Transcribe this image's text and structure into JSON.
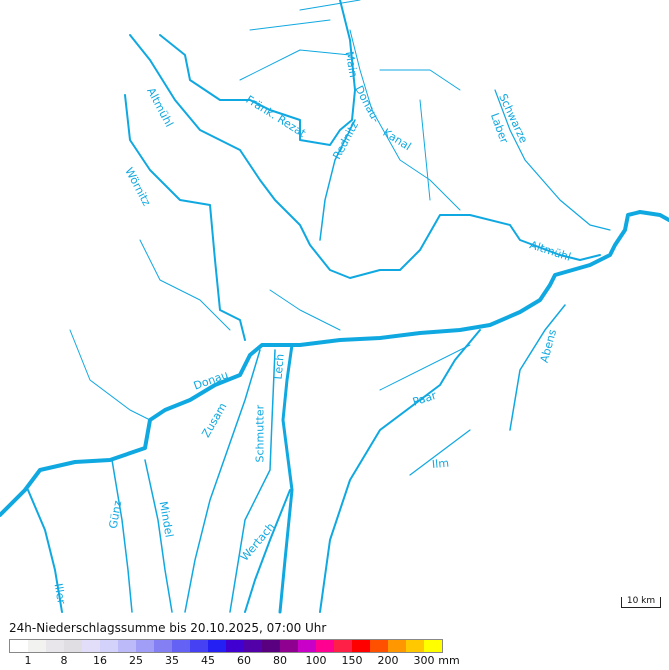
{
  "map": {
    "river_color": "#10a8e0",
    "rivers": [
      {
        "name": "Donau"
      },
      {
        "name": "Lech"
      },
      {
        "name": "Altmühl"
      },
      {
        "name": "Fränk. Rezat"
      },
      {
        "name": "Wörnitz"
      },
      {
        "name": "Zusam"
      },
      {
        "name": "Schmutter"
      },
      {
        "name": "Wertach"
      },
      {
        "name": "Mindel"
      },
      {
        "name": "Günz"
      },
      {
        "name": "Iller"
      },
      {
        "name": "Paar"
      },
      {
        "name": "Ilm"
      },
      {
        "name": "Abens"
      },
      {
        "name": "Schwarze Laber"
      },
      {
        "name": "Main-Donau-Kanal"
      },
      {
        "name": "Rednitz"
      }
    ],
    "labels": {
      "altmuehl_north": "Altmühl",
      "rezat": "Fränk. Rezat",
      "main": "Main-",
      "donau_kanal": "Donau-",
      "kanal": "Kanal",
      "rednitz": "Rednitz",
      "schwarze": "Schwarze",
      "laber": "Laber",
      "woernitz": "Wörnitz",
      "altmuehl_south": "Altmühl",
      "donau": "Donau",
      "lech": "Lech",
      "zusam": "Zusam",
      "schmutter": "Schmutter",
      "paar": "Paar",
      "abens": "Abens",
      "ilm": "Ilm",
      "guenz": "Günz",
      "mindel": "Mindel",
      "wertach": "Wertach",
      "iller": "Iller"
    },
    "scale_bar": "10 km"
  },
  "legend": {
    "title": "24h-Niederschlagssumme bis 20.10.2025, 07:00 Uhr",
    "unit": "mm",
    "colors": [
      "#ffffff",
      "#f2f3f0",
      "#e8e6eb",
      "#e0dee3",
      "#e2defa",
      "#d2d2fa",
      "#bcbaf8",
      "#a09ef6",
      "#8480f4",
      "#6462f4",
      "#4642f4",
      "#2420f4",
      "#4000d0",
      "#5200a8",
      "#580080",
      "#900090",
      "#c800c8",
      "#ff0090",
      "#ff2048",
      "#ff0000",
      "#ff5000",
      "#ff9800",
      "#ffc800",
      "#ffff00"
    ],
    "ticks": [
      "1",
      "8",
      "16",
      "25",
      "35",
      "45",
      "60",
      "80",
      "100",
      "150",
      "200",
      "300"
    ]
  }
}
